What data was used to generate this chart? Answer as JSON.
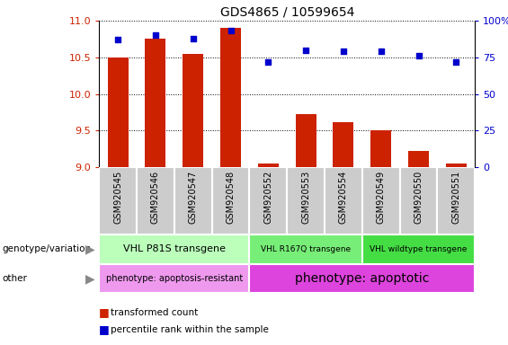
{
  "title": "GDS4865 / 10599654",
  "samples": [
    "GSM920545",
    "GSM920546",
    "GSM920547",
    "GSM920548",
    "GSM920552",
    "GSM920553",
    "GSM920554",
    "GSM920549",
    "GSM920550",
    "GSM920551"
  ],
  "transformed_counts": [
    10.5,
    10.75,
    10.55,
    10.9,
    9.05,
    9.72,
    9.62,
    9.5,
    9.22,
    9.05
  ],
  "percentile_ranks": [
    87,
    90,
    88,
    93,
    72,
    80,
    79,
    79,
    76,
    72
  ],
  "ylim": [
    9.0,
    11.0
  ],
  "yticks": [
    9.0,
    9.5,
    10.0,
    10.5,
    11.0
  ],
  "y2lim": [
    0,
    100
  ],
  "y2ticks": [
    0,
    25,
    50,
    75,
    100
  ],
  "bar_color": "#cc2200",
  "dot_color": "#0000cc",
  "bar_bottom": 9.0,
  "groups": [
    {
      "label": "VHL P81S transgene",
      "start": 0,
      "end": 4,
      "color": "#bbffbb"
    },
    {
      "label": "VHL R167Q transgene",
      "start": 4,
      "end": 7,
      "color": "#77ee77"
    },
    {
      "label": "VHL wildtype transgene",
      "start": 7,
      "end": 10,
      "color": "#44dd44"
    }
  ],
  "other_groups": [
    {
      "label": "phenotype: apoptosis-resistant",
      "start": 0,
      "end": 4,
      "color": "#ee99ee",
      "fontsize": 7
    },
    {
      "label": "phenotype: apoptotic",
      "start": 4,
      "end": 10,
      "color": "#dd44dd",
      "fontsize": 10
    }
  ],
  "sample_bg_color": "#cccccc",
  "sample_border_color": "#ffffff"
}
